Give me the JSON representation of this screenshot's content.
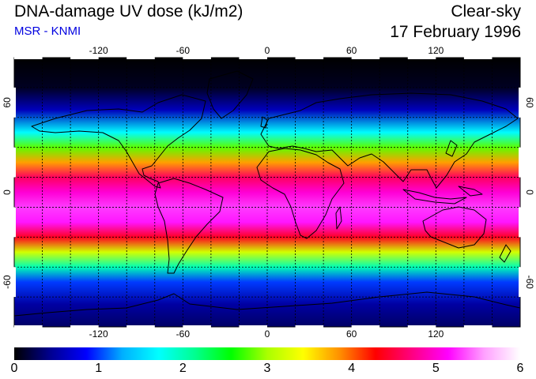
{
  "header": {
    "title": "DNA-damage UV dose (kJ/m2)",
    "subtitle": "MSR - KNMI",
    "condition": "Clear-sky",
    "date": "17 February 1996"
  },
  "map": {
    "lon_ticks": [
      "-120",
      "-60",
      "0",
      "60",
      "120"
    ],
    "lat_ticks": [
      "60",
      "0",
      "-60"
    ],
    "lon_range": [
      -180,
      180
    ],
    "lat_range": [
      -90,
      90
    ],
    "grid_lines": "dashed every 20 degrees",
    "value_range": [
      0,
      6
    ],
    "approx_dose_by_latitude": [
      {
        "lat": 90,
        "dose": 0.0
      },
      {
        "lat": 70,
        "dose": 0.1
      },
      {
        "lat": 55,
        "dose": 0.6
      },
      {
        "lat": 40,
        "dose": 1.7
      },
      {
        "lat": 30,
        "dose": 2.8
      },
      {
        "lat": 20,
        "dose": 3.8
      },
      {
        "lat": 10,
        "dose": 4.6
      },
      {
        "lat": 0,
        "dose": 5.0
      },
      {
        "lat": -10,
        "dose": 5.3
      },
      {
        "lat": -20,
        "dose": 5.2
      },
      {
        "lat": -30,
        "dose": 4.4
      },
      {
        "lat": -40,
        "dose": 3.2
      },
      {
        "lat": -50,
        "dose": 2.0
      },
      {
        "lat": -60,
        "dose": 1.0
      },
      {
        "lat": -75,
        "dose": 0.5
      },
      {
        "lat": -90,
        "dose": 0.3
      }
    ]
  },
  "colorbar": {
    "ticks": [
      "0",
      "1",
      "2",
      "3",
      "4",
      "5",
      "6"
    ],
    "stops": [
      "#000000",
      "#000090",
      "#0000ff",
      "#00b0ff",
      "#00ffff",
      "#00ff90",
      "#00ff00",
      "#aaff00",
      "#ffff00",
      "#ff9000",
      "#ff0000",
      "#ff0080",
      "#ff00ff",
      "#ffa0ff",
      "#ffffff"
    ]
  }
}
